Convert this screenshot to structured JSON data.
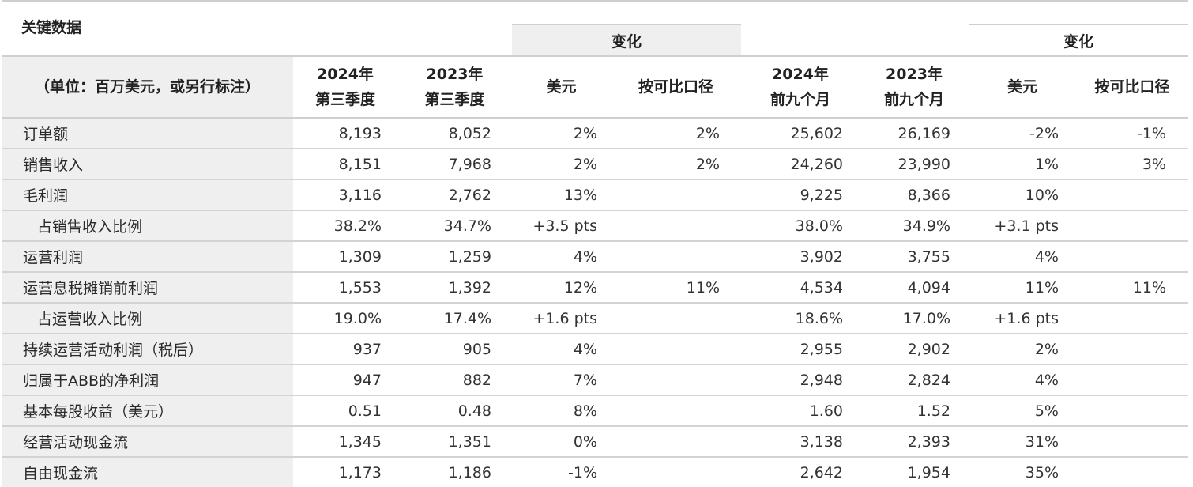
{
  "title": "关键数据",
  "group_headers": {
    "change_q3": "变化",
    "change_9m": "变化"
  },
  "columns": {
    "label": "（单位：百万美元，或另行标注）",
    "q3_2024_line1": "2024年",
    "q3_2024_line2": "第三季度",
    "q3_2023_line1": "2023年",
    "q3_2023_line2": "第三季度",
    "q3_chg_usd": "美元",
    "q3_chg_comparable": "按可比口径",
    "m9_2024_line1": "2024年",
    "m9_2024_line2": "前九个月",
    "m9_2023_line1": "2023年",
    "m9_2023_line2": "前九个月",
    "m9_chg_usd": "美元",
    "m9_chg_comparable": "按可比口径"
  },
  "rows": [
    {
      "label": "订单额",
      "indent": false,
      "q3_2024": "8,193",
      "q3_2023": "8,052",
      "q3_usd": "2%",
      "q3_comp": "2%",
      "m9_2024": "25,602",
      "m9_2023": "26,169",
      "m9_usd": "-2%",
      "m9_comp": "-1%"
    },
    {
      "label": "销售收入",
      "indent": false,
      "q3_2024": "8,151",
      "q3_2023": "7,968",
      "q3_usd": "2%",
      "q3_comp": "2%",
      "m9_2024": "24,260",
      "m9_2023": "23,990",
      "m9_usd": "1%",
      "m9_comp": "3%"
    },
    {
      "label": "毛利润",
      "indent": false,
      "q3_2024": "3,116",
      "q3_2023": "2,762",
      "q3_usd": "13%",
      "q3_comp": "",
      "m9_2024": "9,225",
      "m9_2023": "8,366",
      "m9_usd": "10%",
      "m9_comp": ""
    },
    {
      "label": "占销售收入比例",
      "indent": true,
      "q3_2024": "38.2%",
      "q3_2023": "34.7%",
      "q3_usd": "+3.5 pts",
      "q3_comp": "",
      "m9_2024": "38.0%",
      "m9_2023": "34.9%",
      "m9_usd": "+3.1 pts",
      "m9_comp": ""
    },
    {
      "label": "运营利润",
      "indent": false,
      "q3_2024": "1,309",
      "q3_2023": "1,259",
      "q3_usd": "4%",
      "q3_comp": "",
      "m9_2024": "3,902",
      "m9_2023": "3,755",
      "m9_usd": "4%",
      "m9_comp": ""
    },
    {
      "label": "运营息税摊销前利润",
      "indent": false,
      "q3_2024": "1,553",
      "q3_2023": "1,392",
      "q3_usd": "12%",
      "q3_comp": "11%",
      "m9_2024": "4,534",
      "m9_2023": "4,094",
      "m9_usd": "11%",
      "m9_comp": "11%"
    },
    {
      "label": "占运营收入比例",
      "indent": true,
      "q3_2024": "19.0%",
      "q3_2023": "17.4%",
      "q3_usd": "+1.6 pts",
      "q3_comp": "",
      "m9_2024": "18.6%",
      "m9_2023": "17.0%",
      "m9_usd": "+1.6 pts",
      "m9_comp": ""
    },
    {
      "label": "持续运营活动利润（税后）",
      "indent": false,
      "q3_2024": "937",
      "q3_2023": "905",
      "q3_usd": "4%",
      "q3_comp": "",
      "m9_2024": "2,955",
      "m9_2023": "2,902",
      "m9_usd": "2%",
      "m9_comp": ""
    },
    {
      "label": "归属于ABB的净利润",
      "indent": false,
      "q3_2024": "947",
      "q3_2023": "882",
      "q3_usd": "7%",
      "q3_comp": "",
      "m9_2024": "2,948",
      "m9_2023": "2,824",
      "m9_usd": "4%",
      "m9_comp": ""
    },
    {
      "label": "基本每股收益（美元）",
      "indent": false,
      "q3_2024": "0.51",
      "q3_2023": "0.48",
      "q3_usd": "8%",
      "q3_comp": "",
      "m9_2024": "1.60",
      "m9_2023": "1.52",
      "m9_usd": "5%",
      "m9_comp": ""
    },
    {
      "label": "经营活动现金流",
      "indent": false,
      "q3_2024": "1,345",
      "q3_2023": "1,351",
      "q3_usd": "0%",
      "q3_comp": "",
      "m9_2024": "3,138",
      "m9_2023": "2,393",
      "m9_usd": "31%",
      "m9_comp": ""
    },
    {
      "label": "自由现金流",
      "indent": false,
      "q3_2024": "1,173",
      "q3_2023": "1,186",
      "q3_usd": "-1%",
      "q3_comp": "",
      "m9_2024": "2,642",
      "m9_2023": "1,954",
      "m9_usd": "35%",
      "m9_comp": ""
    }
  ],
  "colors": {
    "label_bg": "#efefef",
    "border": "#cfcfcf",
    "text": "#333333"
  }
}
